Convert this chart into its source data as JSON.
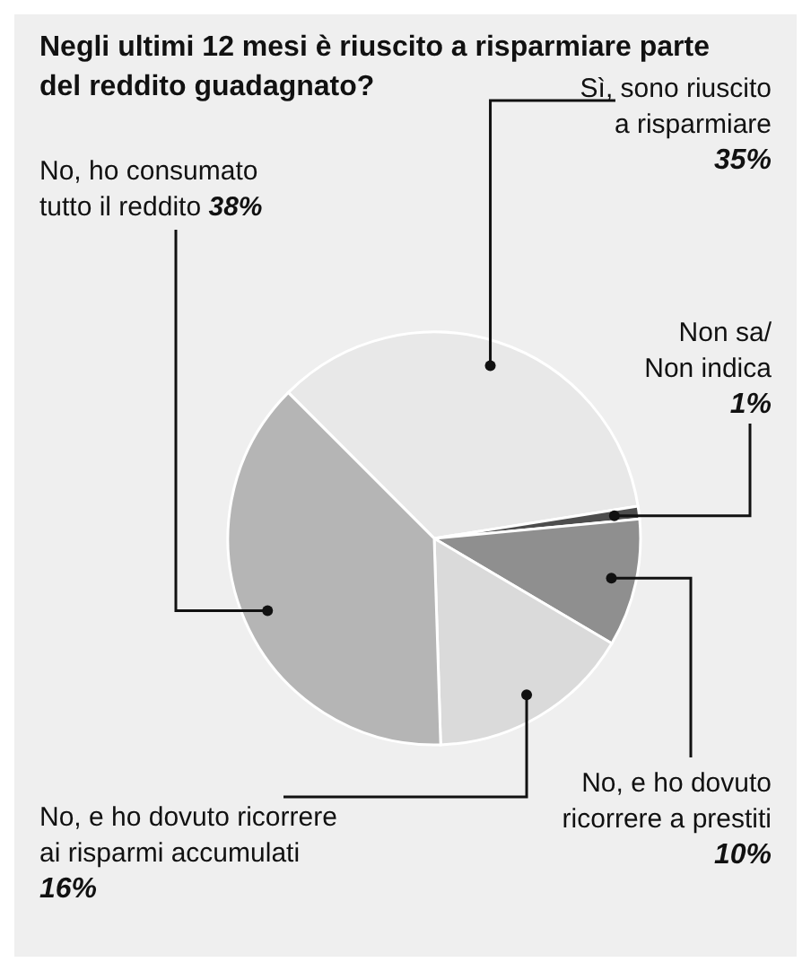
{
  "chart_data": {
    "type": "pie",
    "title": "Negli ultimi 12 mesi è riuscito a risparmiare parte del reddito guadagnato?",
    "categories": [
      "Sì, sono riuscito a risparmiare",
      "Non sa/ Non indica",
      "No, e ho dovuto ricorrere a prestiti",
      "No, e ho dovuto ricorrere ai risparmi accumulati",
      "No, ho consumato tutto il reddito"
    ],
    "values": [
      35,
      1,
      10,
      16,
      38
    ],
    "colors": [
      "#e8e8e8",
      "#4d4d4d",
      "#8f8f8f",
      "#dadada",
      "#b5b5b5"
    ],
    "value_labels": [
      "35%",
      "1%",
      "10%",
      "16%",
      "38%"
    ]
  }
}
